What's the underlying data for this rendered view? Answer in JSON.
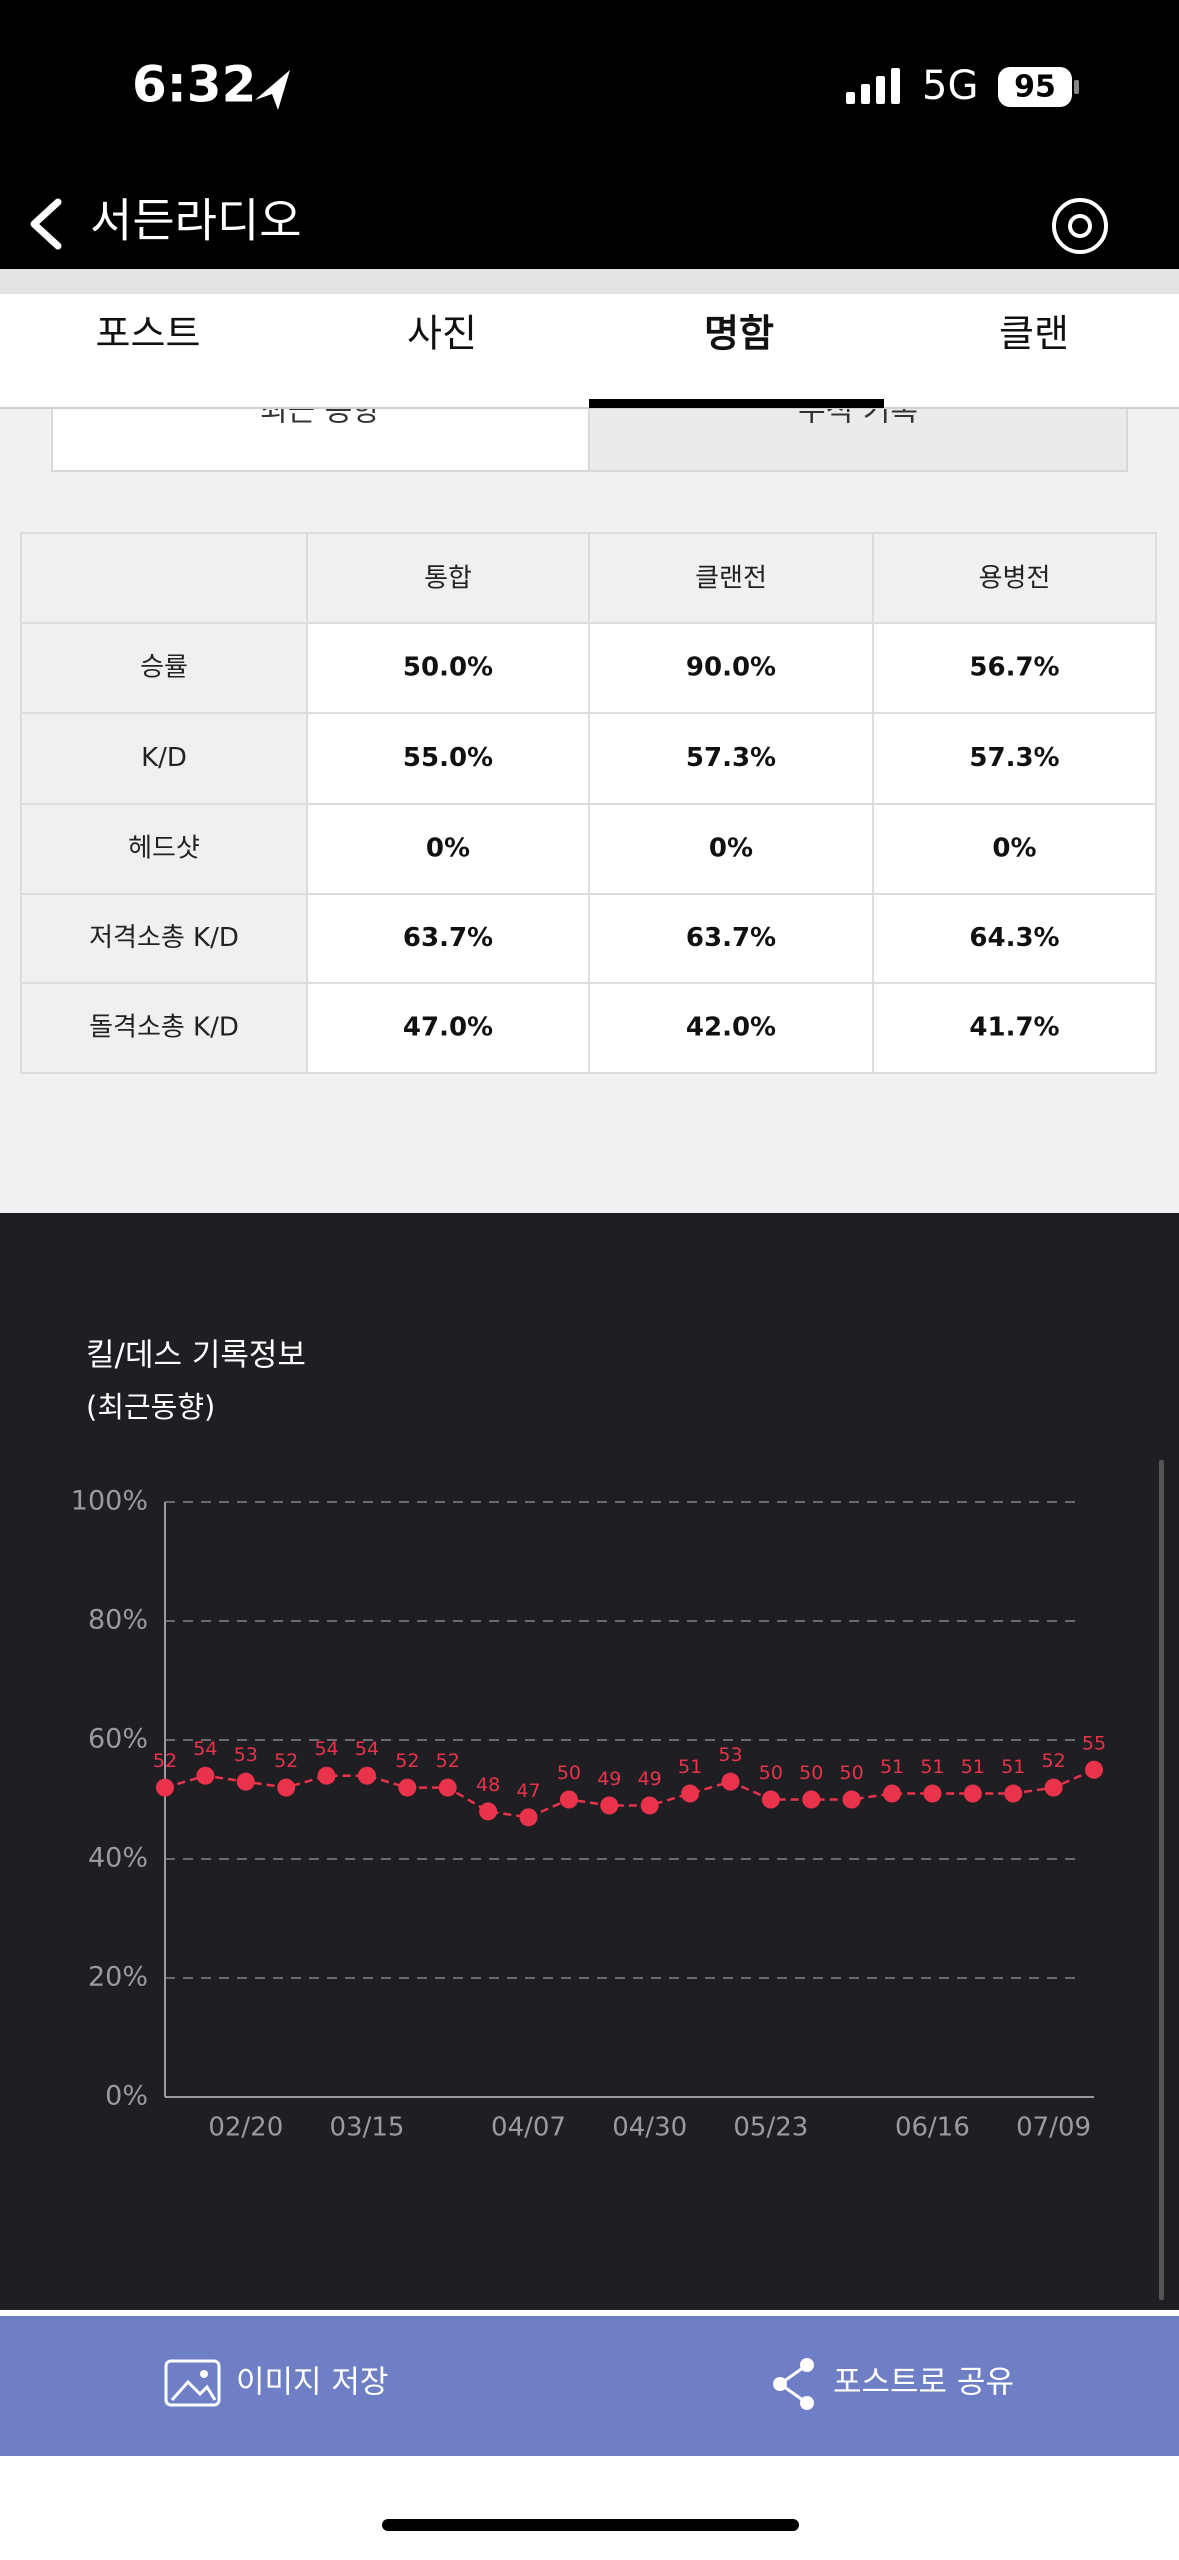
{
  "status_bar": {
    "time": "6:32",
    "network": "5G",
    "battery": "95"
  },
  "header": {
    "title": "서든라디오"
  },
  "tabs": [
    "포스트",
    "사진",
    "명함",
    "클랜"
  ],
  "sub_tabs": [
    "최근 동향",
    "누적 기록"
  ],
  "table": {
    "columns": [
      "통합",
      "클랜전",
      "용병전"
    ],
    "rows": [
      {
        "label": "승률",
        "cells": [
          "50.0%",
          "90.0%",
          "56.7%"
        ]
      },
      {
        "label": "K/D",
        "cells": [
          "55.0%",
          "57.3%",
          "57.3%"
        ]
      },
      {
        "label": "헤드샷",
        "cells": [
          "0%",
          "0%",
          "0%"
        ]
      },
      {
        "label": "저격소총 K/D",
        "cells": [
          "63.7%",
          "63.7%",
          "64.3%"
        ]
      },
      {
        "label": "돌격소총 K/D",
        "cells": [
          "47.0%",
          "42.0%",
          "41.7%"
        ]
      }
    ]
  },
  "chart_data": {
    "type": "line",
    "title": "킬/데스 기록정보",
    "subtitle": "(최근동향)",
    "categories": [
      null,
      null,
      "02/20",
      null,
      null,
      "03/15",
      null,
      null,
      null,
      "04/07",
      null,
      null,
      "04/30",
      null,
      null,
      "05/23",
      null,
      null,
      null,
      "06/16",
      null,
      null,
      "07/09",
      null
    ],
    "values": [
      52,
      54,
      53,
      52,
      54,
      54,
      52,
      52,
      48,
      47,
      50,
      49,
      49,
      51,
      53,
      50,
      50,
      50,
      51,
      51,
      51,
      51,
      52,
      55
    ],
    "color": "#e8334a",
    "ylim": [
      0,
      100
    ],
    "yticks": [
      {
        "value": 0,
        "label": "0%"
      },
      {
        "value": 20,
        "label": "20%"
      },
      {
        "value": 40,
        "label": "40%"
      },
      {
        "value": 60,
        "label": "60%"
      },
      {
        "value": 80,
        "label": "80%"
      },
      {
        "value": 100,
        "label": "100%"
      }
    ],
    "grid": true
  },
  "actions": [
    "이미지 저장",
    "포스트로 공유"
  ]
}
